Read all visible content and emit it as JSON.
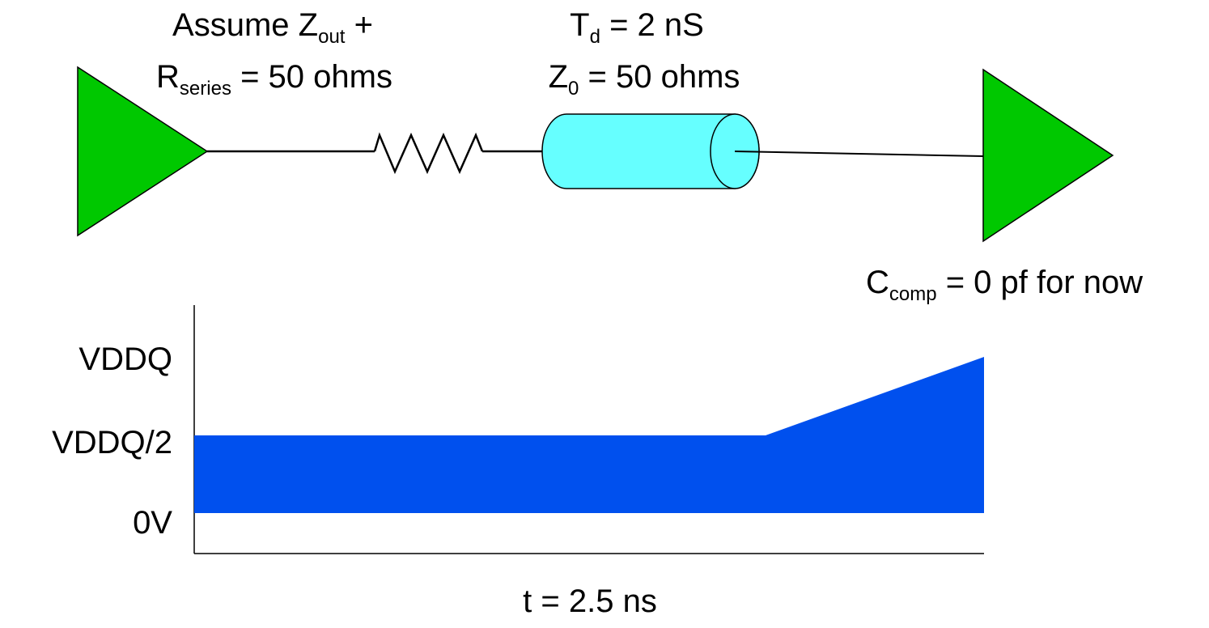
{
  "driver_note": {
    "line1_prefix": "Assume Z",
    "line1_sub": "out",
    "line1_suffix": " +",
    "line2_prefix": "R",
    "line2_sub": "series",
    "line2_suffix": " = 50 ohms"
  },
  "line_note": {
    "line1_prefix": "T",
    "line1_sub": "d",
    "line1_suffix": " = 2 nS",
    "line2_prefix": "Z",
    "line2_sub": "0",
    "line2_suffix": " = 50 ohms"
  },
  "receiver_note": {
    "prefix": "C",
    "sub": "comp",
    "suffix": " = 0 pf for now"
  },
  "waveform": {
    "y_tick_labels": {
      "top": "VDDQ",
      "middle": "VDDQ/2",
      "bottom": "0V"
    },
    "time_label": "t = 2.5 ns"
  },
  "colors": {
    "buffer_fill": "#00c800",
    "tline_fill": "#66ffff",
    "waveform_fill": "#0050ee",
    "wire": "#000000"
  }
}
